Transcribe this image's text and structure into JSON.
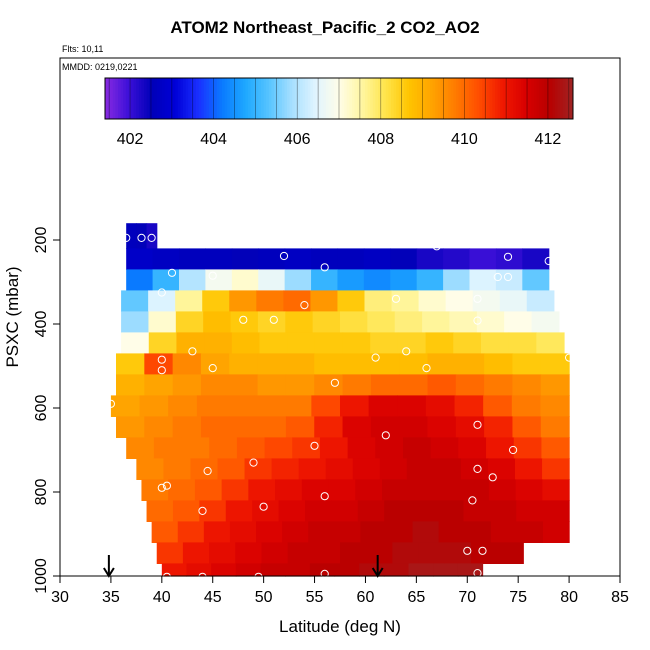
{
  "chart_data": {
    "type": "heatmap",
    "title": "ATOM2 Northeast_Pacific_2 CO2_AO2",
    "notes": [
      "Flts: 10,11",
      "MMDD: 0219,0221"
    ],
    "xlabel": "Latitude (deg N)",
    "ylabel": "PSXC (mbar)",
    "xlim": [
      30,
      85
    ],
    "ylim": [
      1000,
      0
    ],
    "x_ticks": [
      30,
      35,
      40,
      45,
      50,
      55,
      60,
      65,
      70,
      75,
      80,
      85
    ],
    "y_ticks": [
      200,
      400,
      600,
      800,
      1000
    ],
    "colorbar": {
      "range": [
        401.4,
        412.6
      ],
      "ticks": [
        402,
        404,
        406,
        408,
        410,
        412
      ],
      "colors": [
        "#8a2be2",
        "#3d10d8",
        "#0000b8",
        "#0000d8",
        "#1a30ff",
        "#0a7aff",
        "#1ea8ff",
        "#56c4ff",
        "#a8e0ff",
        "#e0f4ff",
        "#fffde8",
        "#fff6a0",
        "#ffe44a",
        "#ffc400",
        "#ffa200",
        "#ff7a00",
        "#ff4c00",
        "#f01800",
        "#d80000",
        "#b80000",
        "#a02424"
      ]
    },
    "series": [
      {
        "name": "",
        "lat_range": [
          36.5,
          39.5
        ],
        "p_range": [
          160,
          220
        ],
        "values": [
          402.6,
          402.5,
          402.3
        ]
      },
      {
        "name": "",
        "lat_range": [
          36.5,
          78
        ],
        "p_range": [
          220,
          270
        ],
        "values": [
          402.8,
          402.7,
          402.6,
          402.6,
          402.5,
          402.6,
          402.7,
          402.6,
          402.6,
          402.7,
          402.5,
          402.3,
          402.2,
          402.0,
          402.1,
          402.3
        ]
      },
      {
        "name": "",
        "lat_range": [
          36.5,
          78
        ],
        "p_range": [
          270,
          320
        ],
        "values": [
          404.2,
          405.0,
          406.0,
          406.8,
          407.2,
          406.6,
          405.8,
          405.0,
          404.6,
          404.4,
          404.6,
          405.0,
          405.8,
          406.4,
          406.2,
          405.4
        ]
      },
      {
        "name": "",
        "lat_range": [
          36,
          78.5
        ],
        "p_range": [
          320,
          370
        ],
        "values": [
          405.4,
          406.4,
          407.6,
          408.6,
          409.4,
          409.8,
          410.0,
          409.4,
          408.6,
          407.8,
          407.6,
          407.2,
          407.0,
          406.8,
          406.6,
          406.2
        ]
      },
      {
        "name": "",
        "lat_range": [
          36,
          79
        ],
        "p_range": [
          370,
          420
        ],
        "values": [
          405.8,
          407.2,
          408.4,
          408.8,
          408.6,
          408.4,
          408.6,
          408.4,
          408.2,
          408.0,
          407.8,
          407.6,
          407.4,
          407.2,
          407.0,
          406.8
        ]
      },
      {
        "name": "",
        "lat_range": [
          36,
          79.5
        ],
        "p_range": [
          420,
          470
        ],
        "values": [
          407.0,
          408.4,
          409.0,
          409.0,
          408.8,
          408.6,
          408.6,
          408.6,
          408.6,
          408.4,
          408.4,
          408.6,
          408.4,
          408.2,
          408.2,
          408.0
        ]
      },
      {
        "name": "",
        "lat_range": [
          35.5,
          80
        ],
        "p_range": [
          470,
          520
        ],
        "values": [
          408.6,
          410.4,
          409.6,
          409.2,
          409.0,
          409.0,
          409.0,
          408.8,
          408.8,
          408.8,
          408.8,
          409.0,
          409.0,
          408.8,
          408.6,
          408.6
        ]
      },
      {
        "name": "",
        "lat_range": [
          35.5,
          80
        ],
        "p_range": [
          520,
          570
        ],
        "values": [
          409.0,
          409.2,
          409.4,
          409.6,
          409.6,
          409.4,
          409.4,
          409.6,
          409.8,
          410.0,
          410.0,
          410.2,
          410.0,
          409.8,
          409.6,
          409.4
        ]
      },
      {
        "name": "",
        "lat_range": [
          35,
          80
        ],
        "p_range": [
          570,
          620
        ],
        "values": [
          409.2,
          409.4,
          409.6,
          409.8,
          409.8,
          409.8,
          409.8,
          410.4,
          411.0,
          411.4,
          411.4,
          411.2,
          410.8,
          410.2,
          409.8,
          409.6
        ]
      },
      {
        "name": "",
        "lat_range": [
          35.5,
          80
        ],
        "p_range": [
          620,
          670
        ],
        "values": [
          409.4,
          409.6,
          409.8,
          410.0,
          410.0,
          410.0,
          410.2,
          410.8,
          411.4,
          411.6,
          411.6,
          411.4,
          411.2,
          410.8,
          410.2,
          409.8
        ]
      },
      {
        "name": "",
        "lat_range": [
          36.5,
          80
        ],
        "p_range": [
          670,
          720
        ],
        "values": [
          409.6,
          409.8,
          409.8,
          410.0,
          410.2,
          410.4,
          410.6,
          411.0,
          411.4,
          411.6,
          411.8,
          411.6,
          411.4,
          411.0,
          410.6,
          410.2
        ]
      },
      {
        "name": "",
        "lat_range": [
          37.5,
          80
        ],
        "p_range": [
          720,
          770
        ],
        "values": [
          409.6,
          409.8,
          410.0,
          410.2,
          410.6,
          410.8,
          411.0,
          411.2,
          411.4,
          411.6,
          411.8,
          411.8,
          411.6,
          411.4,
          411.0,
          410.6
        ]
      },
      {
        "name": "",
        "lat_range": [
          38,
          80
        ],
        "p_range": [
          770,
          820
        ],
        "values": [
          409.8,
          410.0,
          410.2,
          410.6,
          411.0,
          411.2,
          411.4,
          411.4,
          411.6,
          411.8,
          411.8,
          411.8,
          411.8,
          411.6,
          411.4,
          411.2
        ]
      },
      {
        "name": "",
        "lat_range": [
          38.5,
          80
        ],
        "p_range": [
          820,
          870
        ],
        "values": [
          410.0,
          410.2,
          410.6,
          411.0,
          411.2,
          411.4,
          411.6,
          411.6,
          411.8,
          412.0,
          412.0,
          412.0,
          411.8,
          411.8,
          411.6,
          411.6
        ]
      },
      {
        "name": "",
        "lat_range": [
          39,
          80
        ],
        "p_range": [
          870,
          920
        ],
        "values": [
          410.2,
          410.6,
          411.0,
          411.2,
          411.4,
          411.6,
          411.8,
          411.8,
          412.0,
          412.0,
          412.2,
          412.0,
          412.0,
          411.8,
          411.8,
          411.6
        ]
      },
      {
        "name": "",
        "lat_range": [
          39.5,
          75.5
        ],
        "p_range": [
          920,
          970
        ],
        "values": [
          410.6,
          411.0,
          411.2,
          411.4,
          411.6,
          411.8,
          411.8,
          412.0,
          412.0,
          412.2,
          412.2,
          412.2,
          412.0,
          412.0
        ]
      },
      {
        "name": "",
        "lat_range": [
          40,
          71.5
        ],
        "p_range": [
          970,
          1000
        ],
        "values": [
          411.0,
          411.2,
          411.4,
          411.6,
          411.8,
          411.8,
          412.0,
          412.0,
          412.2,
          412.2,
          412.4,
          412.4,
          412.4
        ]
      }
    ],
    "points": [
      [
        36.5,
        195
      ],
      [
        38,
        195
      ],
      [
        39,
        195
      ],
      [
        52,
        238
      ],
      [
        56,
        265
      ],
      [
        67,
        215
      ],
      [
        74,
        240
      ],
      [
        78,
        250
      ],
      [
        41,
        278
      ],
      [
        45,
        285
      ],
      [
        73,
        288
      ],
      [
        74,
        288
      ],
      [
        40,
        325
      ],
      [
        54,
        355
      ],
      [
        63,
        340
      ],
      [
        71,
        340
      ],
      [
        48,
        390
      ],
      [
        51,
        390
      ],
      [
        71,
        392
      ],
      [
        43,
        465
      ],
      [
        64,
        465
      ],
      [
        40,
        485
      ],
      [
        61,
        480
      ],
      [
        80,
        480
      ],
      [
        40,
        510
      ],
      [
        45,
        505
      ],
      [
        66,
        505
      ],
      [
        57,
        540
      ],
      [
        35,
        590
      ],
      [
        71,
        640
      ],
      [
        55,
        690
      ],
      [
        62,
        665
      ],
      [
        74.5,
        700
      ],
      [
        49,
        730
      ],
      [
        44.5,
        750
      ],
      [
        71,
        745
      ],
      [
        72.5,
        765
      ],
      [
        40.5,
        785
      ],
      [
        40,
        790
      ],
      [
        56,
        810
      ],
      [
        70.5,
        820
      ],
      [
        50,
        835
      ],
      [
        44,
        845
      ],
      [
        80.5,
        870
      ],
      [
        70,
        940
      ],
      [
        71.5,
        940
      ],
      [
        40.5,
        1002
      ],
      [
        44,
        1002
      ],
      [
        49.5,
        1002
      ],
      [
        56,
        995
      ],
      [
        71,
        993
      ]
    ],
    "arrows": [
      34.8,
      61.2
    ]
  }
}
